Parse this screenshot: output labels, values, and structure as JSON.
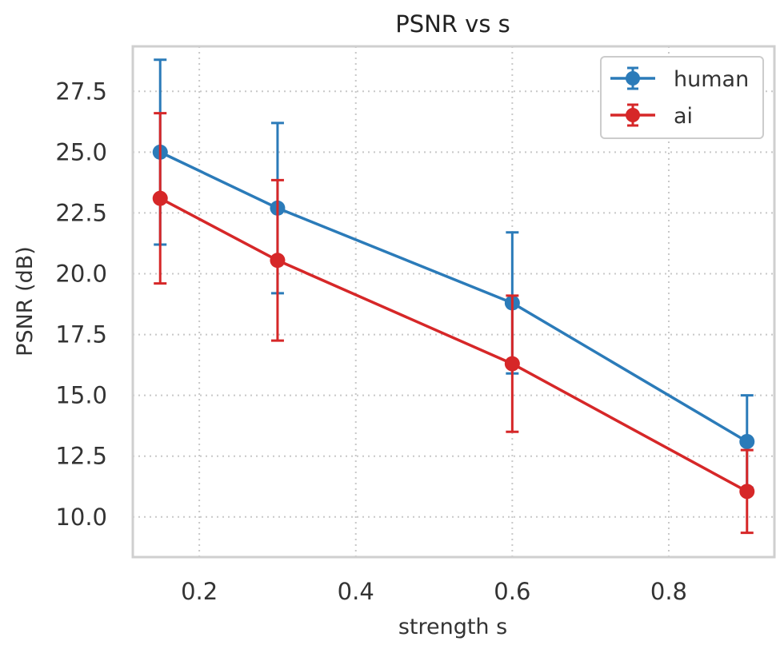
{
  "chart_data": {
    "type": "line",
    "title": "PSNR vs s",
    "xlabel": "strength s",
    "ylabel": "PSNR (dB)",
    "xlim": [
      0.115,
      0.935
    ],
    "ylim": [
      8.35,
      29.35
    ],
    "x_ticks": [
      0.2,
      0.4,
      0.6,
      0.8
    ],
    "x_tick_labels": [
      "0.2",
      "0.4",
      "0.6",
      "0.8"
    ],
    "y_ticks": [
      10.0,
      12.5,
      15.0,
      17.5,
      20.0,
      22.5,
      25.0,
      27.5
    ],
    "y_tick_labels": [
      "10.0",
      "12.5",
      "15.0",
      "17.5",
      "20.0",
      "22.5",
      "25.0",
      "27.5"
    ],
    "grid": true,
    "legend_position": "top-right",
    "x": [
      0.15,
      0.3,
      0.6,
      0.9
    ],
    "series": [
      {
        "name": "human",
        "color": "#2b7bb9",
        "values": [
          25.0,
          22.7,
          18.8,
          13.1
        ],
        "error": [
          3.8,
          3.5,
          2.9,
          1.9
        ]
      },
      {
        "name": "ai",
        "color": "#d62728",
        "values": [
          23.1,
          20.55,
          16.3,
          11.05
        ],
        "error": [
          3.5,
          3.3,
          2.8,
          1.7
        ]
      }
    ]
  }
}
